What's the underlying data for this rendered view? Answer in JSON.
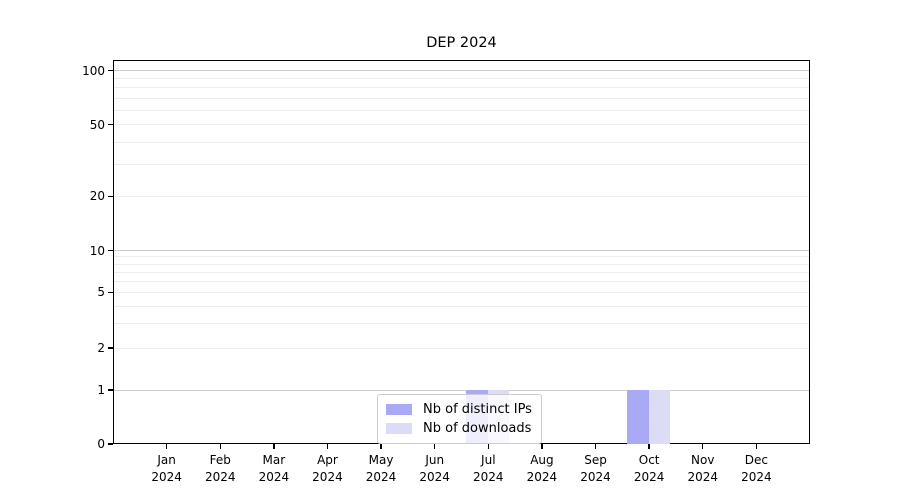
{
  "chart_data": {
    "type": "bar",
    "title": "DEP 2024",
    "x": {
      "months": [
        "Jan",
        "Feb",
        "Mar",
        "Apr",
        "May",
        "Jun",
        "Jul",
        "Aug",
        "Sep",
        "Oct",
        "Nov",
        "Dec"
      ],
      "year": "2024"
    },
    "series": [
      {
        "name": "Nb of distinct IPs",
        "color": "#a9a9f4",
        "values": [
          0,
          0,
          0,
          0,
          0,
          0,
          1,
          0,
          0,
          1,
          0,
          0
        ]
      },
      {
        "name": "Nb of downloads",
        "color": "#dcdcf7",
        "values": [
          0,
          0,
          0,
          0,
          0,
          0,
          1,
          0,
          0,
          1,
          0,
          0
        ]
      }
    ],
    "y_axis": {
      "tick_labels": [
        "100",
        "50",
        "20",
        "10",
        "5",
        "2",
        "1",
        "0"
      ],
      "tick_values": [
        100,
        50,
        20,
        10,
        5,
        2,
        1,
        0
      ],
      "scale": "log above 1, linear between 0 and 1",
      "major_gridlines": [
        100,
        10,
        1
      ],
      "minor_gridlines": [
        90,
        80,
        70,
        60,
        50,
        40,
        30,
        20,
        9,
        8,
        7,
        6,
        5,
        4,
        3,
        2
      ],
      "ylim": [
        0,
        100
      ]
    },
    "legend": {
      "position": "bottom-center",
      "entries": [
        "Nb of distinct IPs",
        "Nb of downloads"
      ]
    },
    "grid": "horizontal only"
  },
  "colors": {
    "bar_distinct_ips": "#a9a9f4",
    "bar_downloads": "#dcdcf7",
    "grid_major": "#cccccc",
    "grid_minor": "#ededed",
    "axis": "#000000",
    "legend_border": "#cccccc",
    "background": "#ffffff"
  }
}
